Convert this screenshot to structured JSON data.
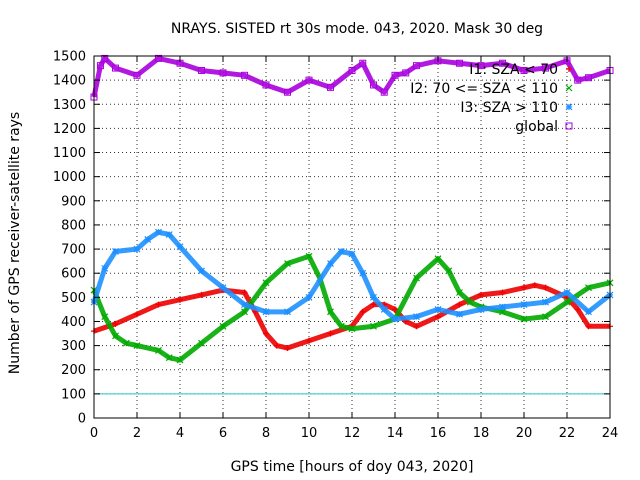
{
  "chart_data": {
    "type": "scatter",
    "title": "NRAYS. SISTED rt 30s mode. 043, 2020. Mask 30 deg",
    "xlabel": "GPS time [hours of doy 043, 2020]",
    "ylabel": "Number of GPS receiver-satellite rays",
    "xlim": [
      0,
      24
    ],
    "ylim": [
      0,
      1500
    ],
    "xticks": [
      "0",
      "2",
      "4",
      "6",
      "8",
      "10",
      "12",
      "14",
      "16",
      "18",
      "20",
      "22",
      "24"
    ],
    "yticks": [
      "0",
      "100",
      "200",
      "300",
      "400",
      "500",
      "600",
      "700",
      "800",
      "900",
      "1000",
      "1100",
      "1200",
      "1300",
      "1400",
      "1500"
    ],
    "grid": true,
    "legend_position": "top-right",
    "reference_line": {
      "y": 100,
      "color": "#22cccc"
    },
    "series": [
      {
        "name": "I1: SZA < 70",
        "legend_label": "I1: SZA < 70",
        "color": "#ee0000",
        "marker": "+",
        "x": [
          0,
          1,
          2,
          3,
          4,
          5,
          6,
          7,
          7.5,
          8,
          8.5,
          9,
          10,
          11,
          12,
          12.5,
          13,
          13.5,
          14,
          14.5,
          15,
          16,
          17,
          18,
          19,
          20,
          20.5,
          21,
          22,
          22.5,
          23,
          24
        ],
        "values": [
          360,
          390,
          430,
          470,
          490,
          510,
          530,
          520,
          440,
          350,
          300,
          290,
          320,
          350,
          380,
          440,
          470,
          470,
          450,
          400,
          380,
          420,
          470,
          510,
          520,
          540,
          550,
          540,
          500,
          450,
          380,
          380
        ]
      },
      {
        "name": "I2: 70 <= SZA < 110",
        "legend_label": "I2: 70 <= SZA < 110",
        "color": "#00aa00",
        "marker": "x",
        "x": [
          0,
          0.5,
          1,
          1.5,
          2,
          3,
          3.5,
          4,
          5,
          6,
          7,
          8,
          9,
          10,
          10.5,
          11,
          11.5,
          12,
          13,
          14,
          15,
          16,
          16.5,
          17,
          17.5,
          18,
          19,
          20,
          21,
          22,
          23,
          24
        ],
        "values": [
          530,
          420,
          340,
          310,
          300,
          280,
          250,
          240,
          310,
          380,
          440,
          560,
          640,
          670,
          580,
          440,
          380,
          370,
          380,
          410,
          580,
          660,
          610,
          520,
          480,
          460,
          440,
          410,
          420,
          480,
          540,
          560
        ]
      },
      {
        "name": "I3: SZA > 110",
        "legend_label": "I3: SZA > 110",
        "color": "#1e90ff",
        "marker": "*",
        "x": [
          0,
          0.5,
          1,
          2,
          2.5,
          3,
          3.5,
          4,
          5,
          6,
          7,
          8,
          9,
          10,
          11,
          11.5,
          12,
          12.5,
          13,
          13.5,
          14,
          15,
          16,
          17,
          18,
          19,
          20,
          21,
          22,
          23,
          24
        ],
        "values": [
          480,
          620,
          690,
          700,
          740,
          770,
          760,
          710,
          610,
          540,
          470,
          440,
          440,
          500,
          640,
          690,
          680,
          600,
          500,
          450,
          410,
          420,
          450,
          430,
          450,
          460,
          470,
          480,
          520,
          440,
          510
        ]
      },
      {
        "name": "global",
        "legend_label": "global",
        "color": "#aa00dd",
        "marker": "square",
        "x": [
          0,
          0.3,
          0.5,
          1,
          2,
          3,
          4,
          5,
          6,
          7,
          8,
          9,
          10,
          11,
          12,
          12.5,
          13,
          13.5,
          14,
          14.5,
          15,
          16,
          17,
          18,
          19,
          20,
          21,
          22,
          22.5,
          23,
          24
        ],
        "values": [
          1330,
          1460,
          1490,
          1450,
          1420,
          1490,
          1470,
          1440,
          1430,
          1420,
          1380,
          1350,
          1400,
          1370,
          1440,
          1470,
          1380,
          1350,
          1420,
          1430,
          1460,
          1480,
          1470,
          1460,
          1470,
          1440,
          1450,
          1480,
          1400,
          1410,
          1440
        ]
      }
    ]
  }
}
